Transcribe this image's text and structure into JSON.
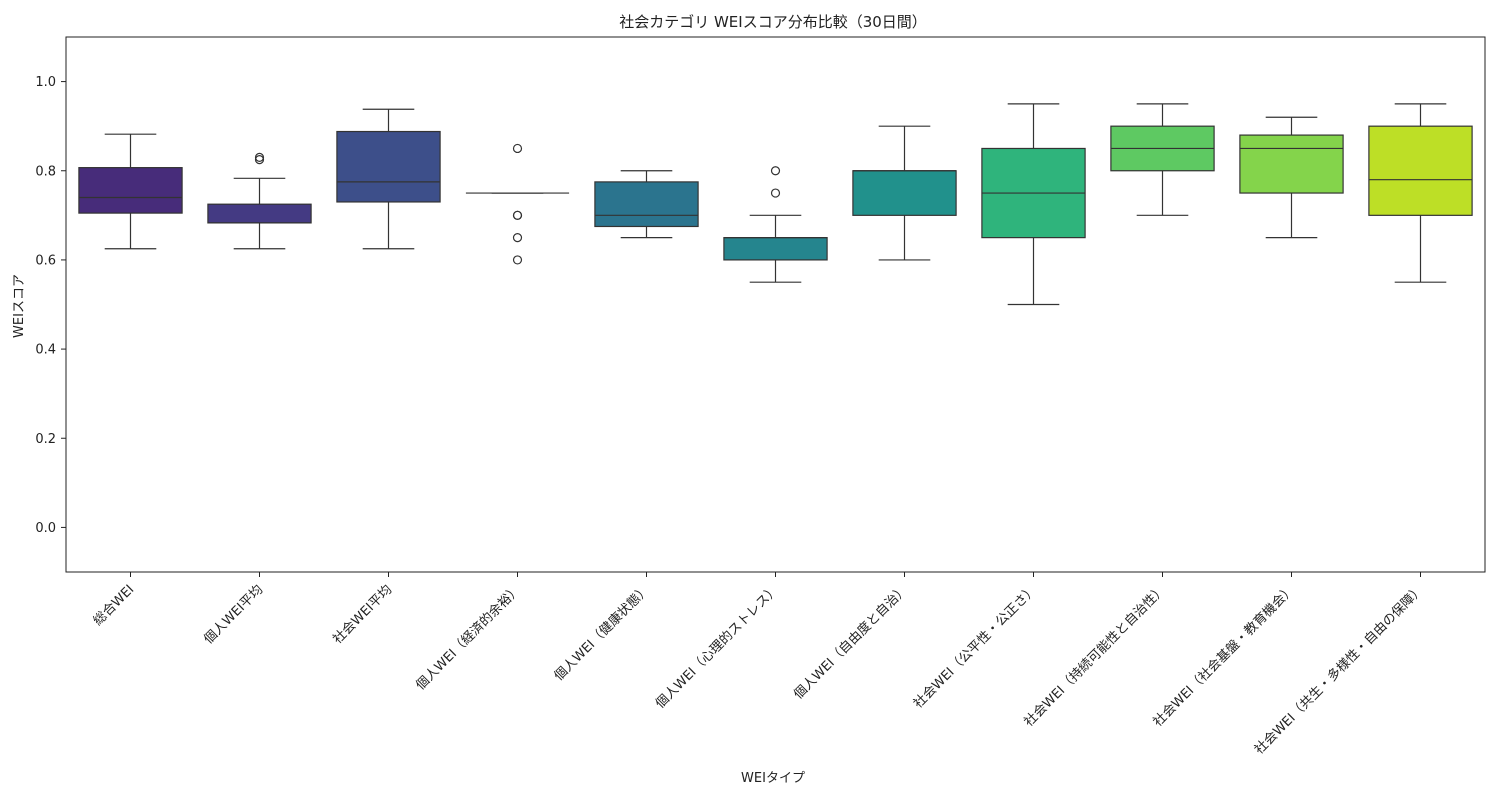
{
  "chart_data": {
    "type": "box",
    "title": "社会カテゴリ WEIスコア分布比較（30日間）",
    "xlabel": "WEIタイプ",
    "ylabel": "WEIスコア",
    "ylim": [
      -0.1,
      1.1
    ],
    "yticks": [
      "0.0",
      "0.2",
      "0.4",
      "0.6",
      "0.8",
      "1.0"
    ],
    "grid": false,
    "categories": [
      "総合WEI",
      "個人WEI平均",
      "社会WEI平均",
      "個人WEI（経済的余裕）",
      "個人WEI（健康状態）",
      "個人WEI（心理的ストレス）",
      "個人WEI（自由度と自治）",
      "社会WEI（公平性・公正さ）",
      "社会WEI（持続可能性と自治性）",
      "社会WEI（社会基盤・教育機会）",
      "社会WEI（共生・多様性・自由の保障）"
    ],
    "colors": [
      "#472c7a",
      "#443a83",
      "#3d4f8a",
      "#30688e",
      "#2b748e",
      "#25858e",
      "#21918c",
      "#2fb47c",
      "#5ec962",
      "#84d44b",
      "#bddf26"
    ],
    "boxes": [
      {
        "whisker_low": 0.625,
        "q1": 0.705,
        "median": 0.74,
        "q3": 0.807,
        "whisker_high": 0.882,
        "outliers": []
      },
      {
        "whisker_low": 0.625,
        "q1": 0.683,
        "median": 0.683,
        "q3": 0.725,
        "whisker_high": 0.783,
        "outliers": [
          0.825,
          0.83
        ]
      },
      {
        "whisker_low": 0.625,
        "q1": 0.73,
        "median": 0.775,
        "q3": 0.888,
        "whisker_high": 0.938,
        "outliers": []
      },
      {
        "whisker_low": 0.75,
        "q1": 0.75,
        "median": 0.75,
        "q3": 0.75,
        "whisker_high": 0.75,
        "outliers": [
          0.6,
          0.65,
          0.7,
          0.7,
          0.85
        ]
      },
      {
        "whisker_low": 0.65,
        "q1": 0.675,
        "median": 0.7,
        "q3": 0.775,
        "whisker_high": 0.8,
        "outliers": []
      },
      {
        "whisker_low": 0.55,
        "q1": 0.6,
        "median": 0.65,
        "q3": 0.65,
        "whisker_high": 0.7,
        "outliers": [
          0.75,
          0.8
        ]
      },
      {
        "whisker_low": 0.6,
        "q1": 0.7,
        "median": 0.8,
        "q3": 0.8,
        "whisker_high": 0.9,
        "outliers": []
      },
      {
        "whisker_low": 0.5,
        "q1": 0.65,
        "median": 0.75,
        "q3": 0.85,
        "whisker_high": 0.95,
        "outliers": []
      },
      {
        "whisker_low": 0.7,
        "q1": 0.8,
        "median": 0.85,
        "q3": 0.9,
        "whisker_high": 0.95,
        "outliers": []
      },
      {
        "whisker_low": 0.65,
        "q1": 0.75,
        "median": 0.85,
        "q3": 0.88,
        "whisker_high": 0.92,
        "outliers": []
      },
      {
        "whisker_low": 0.55,
        "q1": 0.7,
        "median": 0.78,
        "q3": 0.9,
        "whisker_high": 0.95,
        "outliers": []
      }
    ]
  }
}
